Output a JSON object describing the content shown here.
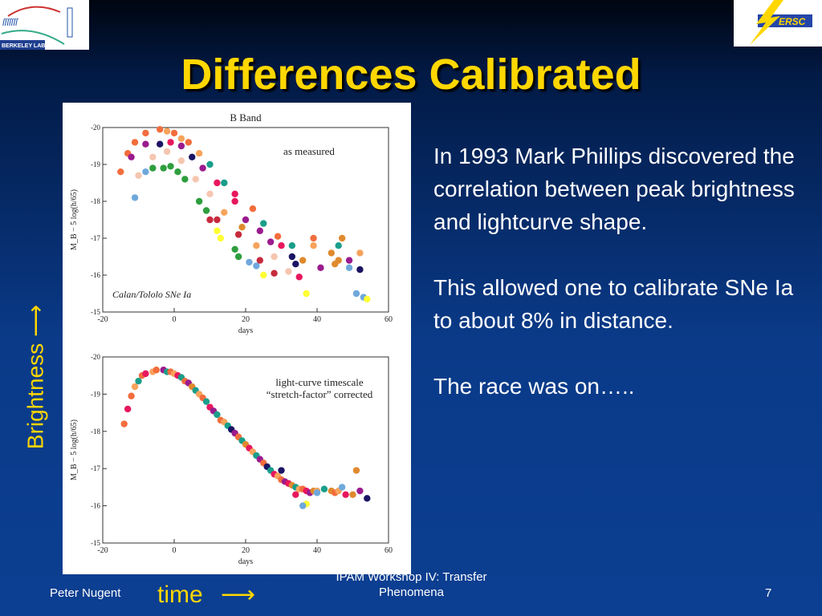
{
  "slide": {
    "title": "Differences Calibrated",
    "author": "Peter Nugent",
    "footer_center": "IPAM Workshop IV: Transfer Phenomena",
    "page_number": "7",
    "paragraphs": [
      "In 1993 Mark Phillips discovered the correlation between peak brightness and lightcurve shape.",
      "This allowed one to calibrate SNe Ia  to about 8% in distance.",
      "The race was on….."
    ],
    "y_arrow_label": "Brightness",
    "x_arrow_label": "time",
    "logos": {
      "left": "BERKELEY LAB",
      "right": "NERSC"
    }
  },
  "colors": {
    "title": "#ffd700",
    "text": "#ffffff",
    "palette": [
      "#f26d3d",
      "#e8175d",
      "#9b1b8e",
      "#1a9e8a",
      "#f7a35c",
      "#f5c6b0",
      "#1b1464",
      "#2e9e3e",
      "#ffff33",
      "#6fa8dc",
      "#e08a2e",
      "#c62a3d"
    ]
  },
  "chart_data": [
    {
      "type": "scatter",
      "title": "B Band",
      "annotation": "as measured",
      "sublabel": "Calan/Tololo SNe Ia",
      "xlabel": "days",
      "ylabel": "M_B − 5 log(h/65)",
      "xlim": [
        -20,
        60
      ],
      "ylim": [
        -20,
        -15
      ],
      "xticks": [
        "-20",
        "0",
        "20",
        "40",
        "60"
      ],
      "yticks": [
        "-20",
        "-19",
        "-18",
        "-17",
        "-16",
        "-15"
      ],
      "points": [
        [
          -15,
          -18.8,
          0
        ],
        [
          -13,
          -19.3,
          0
        ],
        [
          -11,
          -19.6,
          0
        ],
        [
          -8,
          -19.85,
          0
        ],
        [
          -4,
          -19.95,
          0
        ],
        [
          -2,
          -19.9,
          4
        ],
        [
          0,
          -19.85,
          0
        ],
        [
          2,
          -19.7,
          4
        ],
        [
          4,
          -19.6,
          0
        ],
        [
          7,
          -19.3,
          4
        ],
        [
          10,
          -19.0,
          3
        ],
        [
          14,
          -18.5,
          3
        ],
        [
          17,
          -18.2,
          1
        ],
        [
          22,
          -17.8,
          0
        ],
        [
          25,
          -17.4,
          3
        ],
        [
          29,
          -17.05,
          0
        ],
        [
          33,
          -16.8,
          3
        ],
        [
          39,
          -17.0,
          0
        ],
        [
          39,
          -16.8,
          4
        ],
        [
          -12,
          -19.2,
          2
        ],
        [
          -8,
          -19.55,
          2
        ],
        [
          -4,
          -19.55,
          6
        ],
        [
          -1,
          -19.6,
          1
        ],
        [
          2,
          -19.5,
          2
        ],
        [
          5,
          -19.2,
          6
        ],
        [
          8,
          -18.9,
          2
        ],
        [
          12,
          -18.5,
          1
        ],
        [
          17,
          -18.0,
          1
        ],
        [
          20,
          -17.5,
          2
        ],
        [
          24,
          -17.2,
          2
        ],
        [
          27,
          -16.9,
          2
        ],
        [
          30,
          -16.8,
          1
        ],
        [
          33,
          -16.5,
          6
        ],
        [
          34,
          -16.3,
          6
        ],
        [
          36,
          -16.4,
          10
        ],
        [
          41,
          -16.2,
          2
        ],
        [
          -10,
          -18.7,
          5
        ],
        [
          -6,
          -19.2,
          5
        ],
        [
          -2,
          -19.35,
          5
        ],
        [
          2,
          -19.1,
          5
        ],
        [
          6,
          -18.6,
          5
        ],
        [
          10,
          -18.2,
          5
        ],
        [
          14,
          -17.7,
          4
        ],
        [
          19,
          -17.3,
          10
        ],
        [
          23,
          -16.8,
          4
        ],
        [
          28,
          -16.5,
          5
        ],
        [
          32,
          -16.1,
          5
        ],
        [
          -11,
          -18.1,
          9
        ],
        [
          -8,
          -18.8,
          9
        ],
        [
          -6,
          -18.9,
          7
        ],
        [
          -3,
          -18.9,
          7
        ],
        [
          -1,
          -18.95,
          7
        ],
        [
          1,
          -18.8,
          7
        ],
        [
          3,
          -18.6,
          7
        ],
        [
          7,
          -18.0,
          7
        ],
        [
          9,
          -17.75,
          7
        ],
        [
          12,
          -17.2,
          8
        ],
        [
          13,
          -17.0,
          8
        ],
        [
          17,
          -16.7,
          7
        ],
        [
          18,
          -16.5,
          7
        ],
        [
          21,
          -16.35,
          9
        ],
        [
          23,
          -16.25,
          9
        ],
        [
          25,
          -16.0,
          8
        ],
        [
          10,
          -17.5,
          11
        ],
        [
          12,
          -17.5,
          11
        ],
        [
          18,
          -17.1,
          11
        ],
        [
          24,
          -16.4,
          11
        ],
        [
          28,
          -16.05,
          11
        ],
        [
          37,
          -15.5,
          8
        ],
        [
          35,
          -15.95,
          1
        ],
        [
          44,
          -16.6,
          10
        ],
        [
          46,
          -16.4,
          10
        ],
        [
          47,
          -17.0,
          10
        ],
        [
          46,
          -16.8,
          3
        ],
        [
          49,
          -16.4,
          2
        ],
        [
          52,
          -16.15,
          6
        ],
        [
          51,
          -15.5,
          9
        ],
        [
          53,
          -15.4,
          9
        ],
        [
          52,
          -16.6,
          4
        ],
        [
          49,
          -16.2,
          9
        ],
        [
          45,
          -16.3,
          10
        ],
        [
          54,
          -15.35,
          8
        ]
      ]
    },
    {
      "type": "scatter",
      "annotation": "light-curve timescale\n“stretch-factor” corrected",
      "xlabel": "days",
      "ylabel": "M_B − 5 log(h/65)",
      "xlim": [
        -20,
        60
      ],
      "ylim": [
        -20,
        -15
      ],
      "xticks": [
        "-20",
        "0",
        "20",
        "40",
        "60"
      ],
      "yticks": [
        "-20",
        "-19",
        "-18",
        "-17",
        "-16",
        "-15"
      ],
      "points": [
        [
          -14,
          -18.2,
          0
        ],
        [
          -13,
          -18.6,
          1
        ],
        [
          -12,
          -18.95,
          0
        ],
        [
          -11,
          -19.2,
          4
        ],
        [
          -10,
          -19.35,
          3
        ],
        [
          -9,
          -19.5,
          0
        ],
        [
          -8,
          -19.55,
          1
        ],
        [
          -6,
          -19.6,
          4
        ],
        [
          -5,
          -19.65,
          0
        ],
        [
          -3,
          -19.65,
          2
        ],
        [
          -2,
          -19.6,
          3
        ],
        [
          -1,
          -19.6,
          0
        ],
        [
          0,
          -19.55,
          4
        ],
        [
          1,
          -19.5,
          1
        ],
        [
          2,
          -19.45,
          3
        ],
        [
          3,
          -19.35,
          0
        ],
        [
          4,
          -19.3,
          2
        ],
        [
          5,
          -19.2,
          10
        ],
        [
          6,
          -19.1,
          3
        ],
        [
          7,
          -19.0,
          4
        ],
        [
          8,
          -18.9,
          0
        ],
        [
          9,
          -18.8,
          3
        ],
        [
          10,
          -18.65,
          1
        ],
        [
          11,
          -18.55,
          2
        ],
        [
          12,
          -18.45,
          3
        ],
        [
          13,
          -18.3,
          0
        ],
        [
          14,
          -18.25,
          4
        ],
        [
          15,
          -18.15,
          3
        ],
        [
          16,
          -18.05,
          6
        ],
        [
          17,
          -17.95,
          2
        ],
        [
          18,
          -17.85,
          0
        ],
        [
          19,
          -17.75,
          3
        ],
        [
          20,
          -17.65,
          10
        ],
        [
          21,
          -17.55,
          1
        ],
        [
          22,
          -17.45,
          4
        ],
        [
          23,
          -17.35,
          3
        ],
        [
          24,
          -17.25,
          2
        ],
        [
          25,
          -17.15,
          0
        ],
        [
          26,
          -17.05,
          6
        ],
        [
          27,
          -16.95,
          3
        ],
        [
          28,
          -16.85,
          1
        ],
        [
          29,
          -16.8,
          4
        ],
        [
          30,
          -16.7,
          0
        ],
        [
          31,
          -16.65,
          2
        ],
        [
          32,
          -16.6,
          1
        ],
        [
          33,
          -16.55,
          10
        ],
        [
          34,
          -16.5,
          3
        ],
        [
          35,
          -16.45,
          4
        ],
        [
          36,
          -16.45,
          0
        ],
        [
          37,
          -16.4,
          1
        ],
        [
          38,
          -16.35,
          2
        ],
        [
          39,
          -16.4,
          10
        ],
        [
          40,
          -16.4,
          4
        ],
        [
          42,
          -16.45,
          3
        ],
        [
          44,
          -16.4,
          10
        ],
        [
          45,
          -16.35,
          0
        ],
        [
          46,
          -16.4,
          4
        ],
        [
          47,
          -16.5,
          9
        ],
        [
          48,
          -16.3,
          1
        ],
        [
          50,
          -16.3,
          10
        ],
        [
          51,
          -16.95,
          10
        ],
        [
          52,
          -16.4,
          2
        ],
        [
          54,
          -16.2,
          6
        ],
        [
          37,
          -16.05,
          8
        ],
        [
          40,
          -16.35,
          9
        ],
        [
          30,
          -16.95,
          6
        ],
        [
          34,
          -16.3,
          1
        ],
        [
          36,
          -16.0,
          9
        ]
      ]
    }
  ]
}
